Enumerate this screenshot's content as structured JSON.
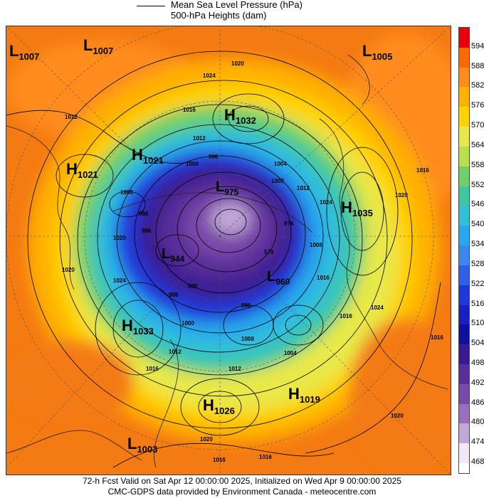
{
  "legend": {
    "line1": "Mean Sea Level Pressure (hPa)",
    "line2": "500-hPa Heights (dam)"
  },
  "colorbar": {
    "levels": [
      "594",
      "588",
      "582",
      "576",
      "570",
      "564",
      "558",
      "552",
      "546",
      "540",
      "534",
      "528",
      "522",
      "516",
      "510",
      "504",
      "498",
      "492",
      "486",
      "480",
      "474",
      "468"
    ],
    "colors": [
      "#e8000d",
      "#ff6a00",
      "#ff8c1a",
      "#ffb000",
      "#ffd200",
      "#e8e84a",
      "#b8e04a",
      "#6fd06a",
      "#3fc8a0",
      "#30c0d8",
      "#28a8ee",
      "#3c88f0",
      "#3060e8",
      "#2038d8",
      "#1820c0",
      "#1010a0",
      "#3a1a90",
      "#5a2e9a",
      "#7a4aaa",
      "#9a6ebc",
      "#c0a8d8",
      "#f0e8f4"
    ]
  },
  "pressure_systems": [
    {
      "type": "L",
      "value": "1007"
    },
    {
      "type": "L",
      "value": "1007"
    },
    {
      "type": "L",
      "value": "1005"
    },
    {
      "type": "H",
      "value": "1032"
    },
    {
      "type": "H",
      "value": "1021"
    },
    {
      "type": "H",
      "value": "1021"
    },
    {
      "type": "H",
      "value": "1035"
    },
    {
      "type": "L",
      "value": "975"
    },
    {
      "type": "L",
      "value": "944"
    },
    {
      "type": "L",
      "value": "960"
    },
    {
      "type": "H",
      "value": "1033"
    },
    {
      "type": "H",
      "value": "1026"
    },
    {
      "type": "H",
      "value": "1019"
    },
    {
      "type": "L",
      "value": "1003"
    }
  ],
  "contour_labels": [
    "1020",
    "1024",
    "1012",
    "1016",
    "1012",
    "996",
    "1000",
    "1004",
    "1008",
    "1012",
    "1024",
    "1016",
    "1020",
    "1008",
    "1016",
    "1016",
    "1024",
    "1016",
    "1020",
    "1024",
    "1020",
    "1012",
    "1004",
    "1008",
    "1000",
    "996",
    "988",
    "996",
    "1008",
    "1012",
    "1016",
    "1020",
    "1016",
    "1016",
    "1020",
    "570",
    "976",
    "986",
    "980"
  ],
  "footer": {
    "line1": "72-h Fcst Valid on Sat Apr 12 00:00:00 2025, Initialized on Wed Apr  9 00:00:00 2025",
    "line2": "CMC-GDPS data provided by Environment Canada - meteocentre.com"
  }
}
